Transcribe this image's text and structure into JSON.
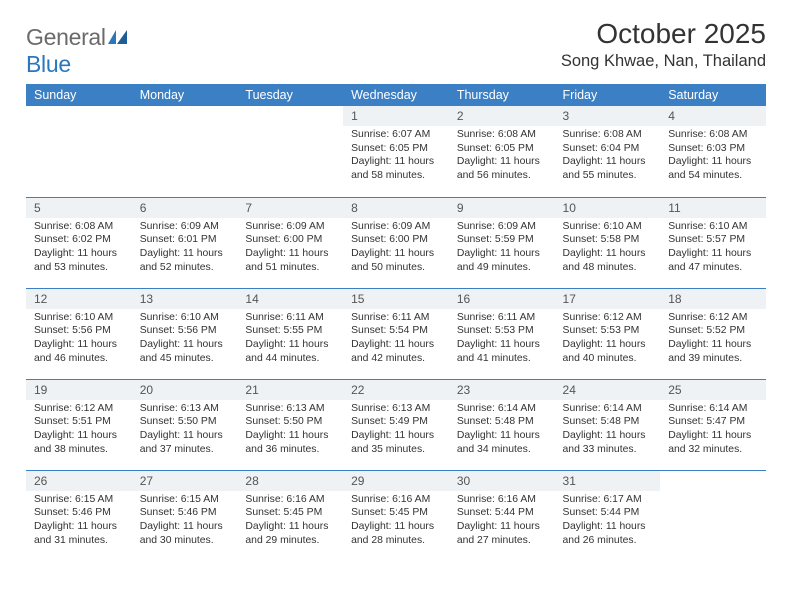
{
  "logo": {
    "word1": "General",
    "word2": "Blue"
  },
  "title": "October 2025",
  "location": "Song Khwae, Nan, Thailand",
  "header_bg": "#3b7fc4",
  "band_bg": "#eef2f5",
  "border_color": "#3b7fc4",
  "weekdays": [
    "Sunday",
    "Monday",
    "Tuesday",
    "Wednesday",
    "Thursday",
    "Friday",
    "Saturday"
  ],
  "weeks": [
    [
      null,
      null,
      null,
      {
        "n": "1",
        "sr": "6:07 AM",
        "ss": "6:05 PM",
        "dl": "11 hours and 58 minutes."
      },
      {
        "n": "2",
        "sr": "6:08 AM",
        "ss": "6:05 PM",
        "dl": "11 hours and 56 minutes."
      },
      {
        "n": "3",
        "sr": "6:08 AM",
        "ss": "6:04 PM",
        "dl": "11 hours and 55 minutes."
      },
      {
        "n": "4",
        "sr": "6:08 AM",
        "ss": "6:03 PM",
        "dl": "11 hours and 54 minutes."
      }
    ],
    [
      {
        "n": "5",
        "sr": "6:08 AM",
        "ss": "6:02 PM",
        "dl": "11 hours and 53 minutes."
      },
      {
        "n": "6",
        "sr": "6:09 AM",
        "ss": "6:01 PM",
        "dl": "11 hours and 52 minutes."
      },
      {
        "n": "7",
        "sr": "6:09 AM",
        "ss": "6:00 PM",
        "dl": "11 hours and 51 minutes."
      },
      {
        "n": "8",
        "sr": "6:09 AM",
        "ss": "6:00 PM",
        "dl": "11 hours and 50 minutes."
      },
      {
        "n": "9",
        "sr": "6:09 AM",
        "ss": "5:59 PM",
        "dl": "11 hours and 49 minutes."
      },
      {
        "n": "10",
        "sr": "6:10 AM",
        "ss": "5:58 PM",
        "dl": "11 hours and 48 minutes."
      },
      {
        "n": "11",
        "sr": "6:10 AM",
        "ss": "5:57 PM",
        "dl": "11 hours and 47 minutes."
      }
    ],
    [
      {
        "n": "12",
        "sr": "6:10 AM",
        "ss": "5:56 PM",
        "dl": "11 hours and 46 minutes."
      },
      {
        "n": "13",
        "sr": "6:10 AM",
        "ss": "5:56 PM",
        "dl": "11 hours and 45 minutes."
      },
      {
        "n": "14",
        "sr": "6:11 AM",
        "ss": "5:55 PM",
        "dl": "11 hours and 44 minutes."
      },
      {
        "n": "15",
        "sr": "6:11 AM",
        "ss": "5:54 PM",
        "dl": "11 hours and 42 minutes."
      },
      {
        "n": "16",
        "sr": "6:11 AM",
        "ss": "5:53 PM",
        "dl": "11 hours and 41 minutes."
      },
      {
        "n": "17",
        "sr": "6:12 AM",
        "ss": "5:53 PM",
        "dl": "11 hours and 40 minutes."
      },
      {
        "n": "18",
        "sr": "6:12 AM",
        "ss": "5:52 PM",
        "dl": "11 hours and 39 minutes."
      }
    ],
    [
      {
        "n": "19",
        "sr": "6:12 AM",
        "ss": "5:51 PM",
        "dl": "11 hours and 38 minutes."
      },
      {
        "n": "20",
        "sr": "6:13 AM",
        "ss": "5:50 PM",
        "dl": "11 hours and 37 minutes."
      },
      {
        "n": "21",
        "sr": "6:13 AM",
        "ss": "5:50 PM",
        "dl": "11 hours and 36 minutes."
      },
      {
        "n": "22",
        "sr": "6:13 AM",
        "ss": "5:49 PM",
        "dl": "11 hours and 35 minutes."
      },
      {
        "n": "23",
        "sr": "6:14 AM",
        "ss": "5:48 PM",
        "dl": "11 hours and 34 minutes."
      },
      {
        "n": "24",
        "sr": "6:14 AM",
        "ss": "5:48 PM",
        "dl": "11 hours and 33 minutes."
      },
      {
        "n": "25",
        "sr": "6:14 AM",
        "ss": "5:47 PM",
        "dl": "11 hours and 32 minutes."
      }
    ],
    [
      {
        "n": "26",
        "sr": "6:15 AM",
        "ss": "5:46 PM",
        "dl": "11 hours and 31 minutes."
      },
      {
        "n": "27",
        "sr": "6:15 AM",
        "ss": "5:46 PM",
        "dl": "11 hours and 30 minutes."
      },
      {
        "n": "28",
        "sr": "6:16 AM",
        "ss": "5:45 PM",
        "dl": "11 hours and 29 minutes."
      },
      {
        "n": "29",
        "sr": "6:16 AM",
        "ss": "5:45 PM",
        "dl": "11 hours and 28 minutes."
      },
      {
        "n": "30",
        "sr": "6:16 AM",
        "ss": "5:44 PM",
        "dl": "11 hours and 27 minutes."
      },
      {
        "n": "31",
        "sr": "6:17 AM",
        "ss": "5:44 PM",
        "dl": "11 hours and 26 minutes."
      },
      null
    ]
  ],
  "labels": {
    "sunrise": "Sunrise:",
    "sunset": "Sunset:",
    "daylight": "Daylight:"
  }
}
